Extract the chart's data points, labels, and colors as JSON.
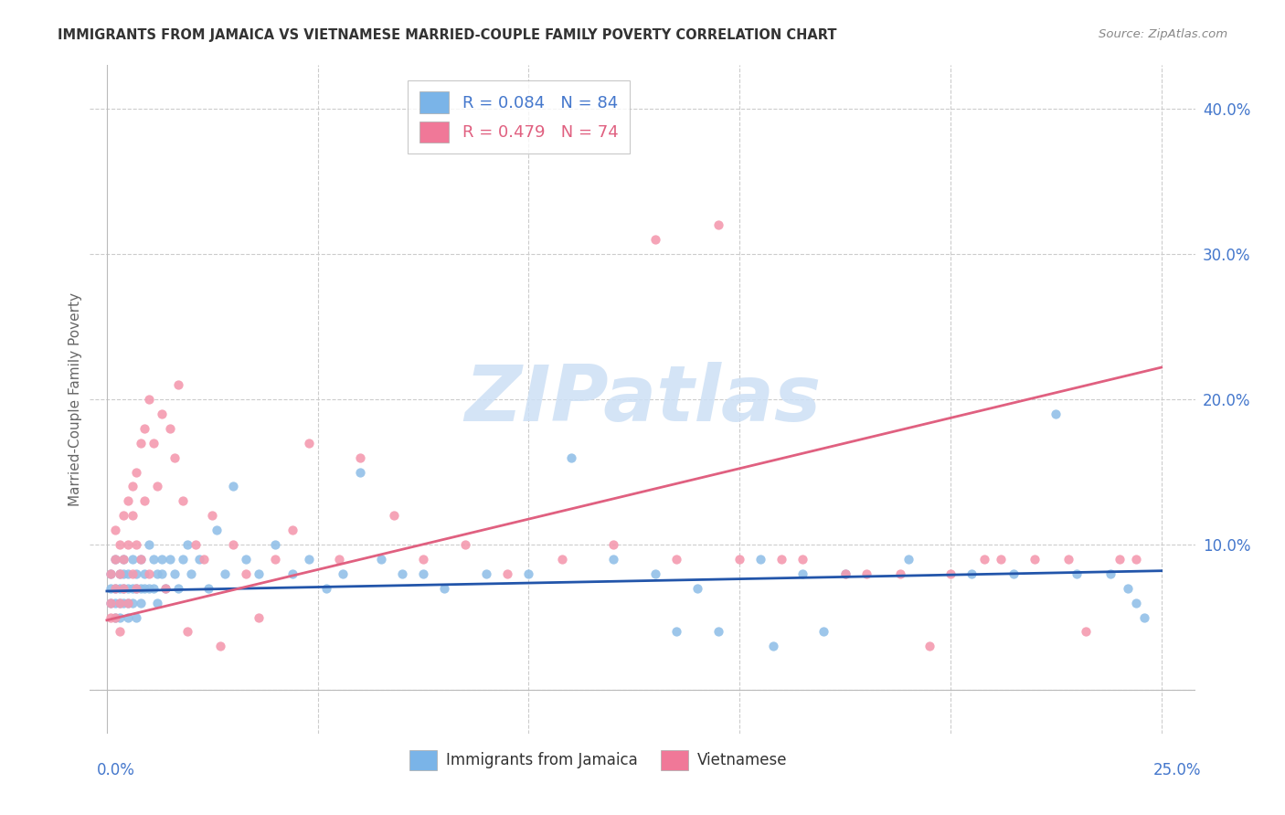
{
  "title": "IMMIGRANTS FROM JAMAICA VS VIETNAMESE MARRIED-COUPLE FAMILY POVERTY CORRELATION CHART",
  "source": "Source: ZipAtlas.com",
  "ylabel": "Married-Couple Family Poverty",
  "xlim": [
    0.0,
    0.25
  ],
  "ylim": [
    -0.03,
    0.43
  ],
  "jamaica_color": "#92c0e8",
  "vietnamese_color": "#f49ab0",
  "jamaica_line_color": "#2255aa",
  "vietnamese_line_color": "#e06080",
  "legend_color_jamaica": "#7ab4e8",
  "legend_color_vietnamese": "#f07898",
  "background_color": "#ffffff",
  "grid_color": "#cccccc",
  "title_color": "#333333",
  "source_color": "#888888",
  "axis_label_color": "#4477cc",
  "ylabel_color": "#666666",
  "watermark_color": "#cde0f5",
  "legend_r_jamaica": "R = 0.084",
  "legend_n_jamaica": "N = 84",
  "legend_r_vietnamese": "R = 0.479",
  "legend_n_vietnamese": "N = 74",
  "jamaica_line_y0": 0.068,
  "jamaica_line_y1": 0.082,
  "vietnamese_line_y0": 0.048,
  "vietnamese_line_y1": 0.222,
  "jamaica_x": [
    0.001,
    0.001,
    0.001,
    0.002,
    0.002,
    0.002,
    0.002,
    0.003,
    0.003,
    0.003,
    0.003,
    0.004,
    0.004,
    0.004,
    0.004,
    0.005,
    0.005,
    0.005,
    0.005,
    0.006,
    0.006,
    0.006,
    0.007,
    0.007,
    0.007,
    0.008,
    0.008,
    0.008,
    0.009,
    0.009,
    0.01,
    0.01,
    0.011,
    0.011,
    0.012,
    0.012,
    0.013,
    0.013,
    0.014,
    0.015,
    0.016,
    0.017,
    0.018,
    0.019,
    0.02,
    0.022,
    0.024,
    0.026,
    0.028,
    0.03,
    0.033,
    0.036,
    0.04,
    0.044,
    0.048,
    0.052,
    0.056,
    0.06,
    0.065,
    0.07,
    0.075,
    0.08,
    0.09,
    0.1,
    0.11,
    0.12,
    0.13,
    0.14,
    0.155,
    0.165,
    0.175,
    0.19,
    0.205,
    0.215,
    0.225,
    0.23,
    0.238,
    0.242,
    0.244,
    0.246,
    0.135,
    0.145,
    0.158,
    0.17
  ],
  "jamaica_y": [
    0.07,
    0.06,
    0.08,
    0.07,
    0.05,
    0.09,
    0.06,
    0.07,
    0.06,
    0.08,
    0.05,
    0.07,
    0.08,
    0.06,
    0.09,
    0.07,
    0.06,
    0.08,
    0.05,
    0.07,
    0.09,
    0.06,
    0.07,
    0.08,
    0.05,
    0.09,
    0.07,
    0.06,
    0.08,
    0.07,
    0.1,
    0.07,
    0.09,
    0.07,
    0.08,
    0.06,
    0.09,
    0.08,
    0.07,
    0.09,
    0.08,
    0.07,
    0.09,
    0.1,
    0.08,
    0.09,
    0.07,
    0.11,
    0.08,
    0.14,
    0.09,
    0.08,
    0.1,
    0.08,
    0.09,
    0.07,
    0.08,
    0.15,
    0.09,
    0.08,
    0.08,
    0.07,
    0.08,
    0.08,
    0.16,
    0.09,
    0.08,
    0.07,
    0.09,
    0.08,
    0.08,
    0.09,
    0.08,
    0.08,
    0.19,
    0.08,
    0.08,
    0.07,
    0.06,
    0.05,
    0.04,
    0.04,
    0.03,
    0.04
  ],
  "vietnamese_x": [
    0.001,
    0.001,
    0.001,
    0.002,
    0.002,
    0.002,
    0.002,
    0.003,
    0.003,
    0.003,
    0.003,
    0.004,
    0.004,
    0.004,
    0.005,
    0.005,
    0.005,
    0.006,
    0.006,
    0.006,
    0.007,
    0.007,
    0.007,
    0.008,
    0.008,
    0.009,
    0.009,
    0.01,
    0.01,
    0.011,
    0.012,
    0.013,
    0.014,
    0.015,
    0.016,
    0.017,
    0.018,
    0.019,
    0.021,
    0.023,
    0.025,
    0.027,
    0.03,
    0.033,
    0.036,
    0.04,
    0.044,
    0.048,
    0.055,
    0.06,
    0.068,
    0.075,
    0.085,
    0.095,
    0.108,
    0.12,
    0.135,
    0.15,
    0.165,
    0.18,
    0.195,
    0.208,
    0.22,
    0.232,
    0.24,
    0.244,
    0.13,
    0.145,
    0.16,
    0.175,
    0.188,
    0.2,
    0.212,
    0.228
  ],
  "vietnamese_y": [
    0.06,
    0.05,
    0.08,
    0.07,
    0.09,
    0.05,
    0.11,
    0.06,
    0.1,
    0.08,
    0.04,
    0.12,
    0.09,
    0.07,
    0.13,
    0.06,
    0.1,
    0.14,
    0.08,
    0.12,
    0.07,
    0.15,
    0.1,
    0.17,
    0.09,
    0.18,
    0.13,
    0.2,
    0.08,
    0.17,
    0.14,
    0.19,
    0.07,
    0.18,
    0.16,
    0.21,
    0.13,
    0.04,
    0.1,
    0.09,
    0.12,
    0.03,
    0.1,
    0.08,
    0.05,
    0.09,
    0.11,
    0.17,
    0.09,
    0.16,
    0.12,
    0.09,
    0.1,
    0.08,
    0.09,
    0.1,
    0.09,
    0.09,
    0.09,
    0.08,
    0.03,
    0.09,
    0.09,
    0.04,
    0.09,
    0.09,
    0.31,
    0.32,
    0.09,
    0.08,
    0.08,
    0.08,
    0.09,
    0.09
  ]
}
